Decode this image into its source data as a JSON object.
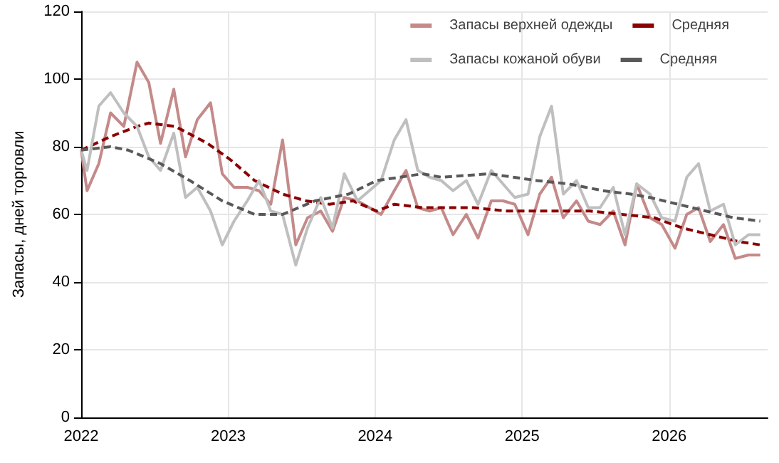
{
  "chart_data": {
    "type": "line",
    "ylabel": "Запасы, дней торговли",
    "xlim": [
      2022,
      2026.67
    ],
    "xticks": [
      2022,
      2023,
      2024,
      2025,
      2026
    ],
    "ylim": [
      0,
      120
    ],
    "yticks": [
      0,
      20,
      40,
      60,
      80,
      100,
      120
    ],
    "grid": true,
    "legend": "top",
    "marker": "none",
    "series": [
      {
        "name": "Запасы верхней одежды",
        "color": "#c48a8a",
        "line_style": "solid",
        "x": [
          2022,
          2022.04,
          2022.12,
          2022.2,
          2022.29,
          2022.38,
          2022.46,
          2022.54,
          2022.63,
          2022.71,
          2022.79,
          2022.88,
          2022.96,
          2023.04,
          2023.13,
          2023.21,
          2023.29,
          2023.37,
          2023.46,
          2023.54,
          2023.63,
          2023.71,
          2023.79,
          2023.88,
          2023.96,
          2024.04,
          2024.13,
          2024.21,
          2024.29,
          2024.37,
          2024.45,
          2024.53,
          2024.62,
          2024.7,
          2024.79,
          2024.87,
          2024.95,
          2025.04,
          2025.12,
          2025.2,
          2025.28,
          2025.37,
          2025.45,
          2025.53,
          2025.62,
          2025.7,
          2025.78,
          2025.87,
          2025.95,
          2026.04,
          2026.12,
          2026.2,
          2026.28,
          2026.37,
          2026.45,
          2026.54,
          2026.62
        ],
        "values": [
          79,
          67,
          75,
          90,
          86,
          105,
          99,
          81,
          97,
          77,
          88,
          93,
          72,
          68,
          68,
          67,
          63,
          82,
          51,
          59,
          61,
          55,
          65,
          64,
          62,
          60,
          67,
          73,
          62,
          61,
          62,
          54,
          60,
          53,
          64,
          64,
          63,
          54,
          66,
          71,
          59,
          64,
          58,
          57,
          61,
          51,
          69,
          59,
          57,
          50,
          60,
          62,
          52,
          57,
          47,
          48,
          48
        ]
      },
      {
        "name": "Средняя",
        "color": "#8b0000",
        "line_style": "dashed",
        "x": [
          2022,
          2022.2,
          2022.38,
          2022.46,
          2022.64,
          2022.86,
          2023.02,
          2023.18,
          2023.37,
          2023.53,
          2023.69,
          2023.85,
          2024.01,
          2024.13,
          2024.32,
          2024.44,
          2024.67,
          2024.89,
          2025.08,
          2025.3,
          2025.46,
          2025.68,
          2025.9,
          2026.09,
          2026.28,
          2026.47,
          2026.62
        ],
        "values": [
          79,
          83,
          86,
          87,
          86,
          81,
          76,
          70,
          66,
          64,
          63,
          64,
          61,
          63,
          62,
          62,
          62,
          61,
          61,
          61,
          61,
          60,
          59,
          56,
          54,
          52,
          51
        ]
      },
      {
        "name": "Запасы кожаной обуви",
        "color": "#bfbfbf",
        "line_style": "solid",
        "x": [
          2022,
          2022.04,
          2022.12,
          2022.2,
          2022.29,
          2022.38,
          2022.46,
          2022.54,
          2022.63,
          2022.71,
          2022.79,
          2022.88,
          2022.96,
          2023.04,
          2023.13,
          2023.21,
          2023.29,
          2023.37,
          2023.46,
          2023.54,
          2023.63,
          2023.71,
          2023.79,
          2023.88,
          2023.96,
          2024.04,
          2024.13,
          2024.21,
          2024.29,
          2024.37,
          2024.45,
          2024.53,
          2024.62,
          2024.7,
          2024.79,
          2024.87,
          2024.95,
          2025.04,
          2025.12,
          2025.2,
          2025.28,
          2025.37,
          2025.45,
          2025.53,
          2025.62,
          2025.7,
          2025.78,
          2025.87,
          2025.95,
          2026.04,
          2026.12,
          2026.2,
          2026.28,
          2026.37,
          2026.45,
          2026.54,
          2026.62
        ],
        "values": [
          79,
          73,
          92,
          96,
          90,
          86,
          77,
          73,
          84,
          65,
          68,
          61,
          51,
          58,
          64,
          70,
          61,
          60,
          45,
          56,
          65,
          56,
          72,
          64,
          67,
          70,
          82,
          88,
          73,
          71,
          70,
          67,
          70,
          63,
          73,
          69,
          65,
          66,
          83,
          92,
          66,
          70,
          62,
          62,
          68,
          54,
          69,
          66,
          59,
          58,
          71,
          75,
          61,
          63,
          51,
          54,
          54
        ]
      },
      {
        "name": "Средняя",
        "color": "#595959",
        "line_style": "dashed",
        "x": [
          2022,
          2022.2,
          2022.32,
          2022.54,
          2022.74,
          2022.96,
          2023.18,
          2023.37,
          2023.59,
          2023.82,
          2024.01,
          2024.17,
          2024.32,
          2024.45,
          2024.78,
          2025.1,
          2025.32,
          2025.55,
          2025.74,
          2025.87,
          2026.06,
          2026.25,
          2026.44,
          2026.62
        ],
        "values": [
          79,
          80,
          79,
          75,
          70,
          64,
          60,
          60,
          64,
          66,
          70,
          71,
          72,
          71,
          72,
          70,
          69,
          67,
          66,
          65,
          63,
          61,
          59,
          58
        ]
      }
    ]
  }
}
